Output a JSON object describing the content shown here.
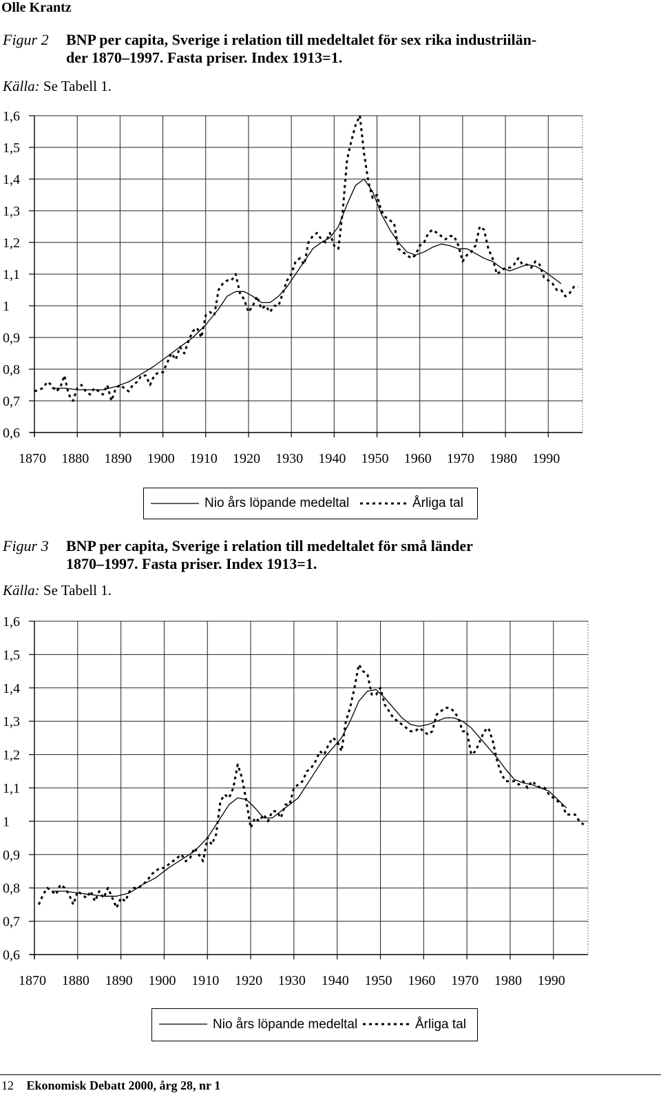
{
  "header": {
    "running_head": "Olle Krantz"
  },
  "figures": [
    {
      "label": "Figur 2",
      "title_line1": "BNP per capita, Sverige i relation till medeltalet för sex rika industriilän-",
      "title_line2": "der 1870–1997. Fasta priser. Index 1913=1.",
      "source_label": "Källa:",
      "source_text": "Se Tabell 1.",
      "legend": {
        "solid": "Nio års löpande medeltal",
        "dotted": "Årliga tal"
      }
    },
    {
      "label": "Figur 3",
      "title_line1": "BNP per capita, Sverige i relation till medeltalet för små länder",
      "title_line2": "1870–1997. Fasta priser. Index 1913=1.",
      "source_label": "Källa:",
      "source_text": "Se Tabell 1.",
      "legend": {
        "solid": "Nio års löpande medeltal",
        "dotted": "Årliga tal"
      }
    }
  ],
  "footer": {
    "page": "12",
    "journal": "Ekonomisk Debatt 2000, årg 28, nr 1"
  },
  "chart_data": [
    {
      "type": "line",
      "title": "BNP per capita, Sverige i relation till medeltalet för sex rika industriiländer 1870–1997. Fasta priser. Index 1913=1.",
      "xlim": [
        1870,
        1998
      ],
      "ylim": [
        0.6,
        1.6
      ],
      "x_ticks": [
        1870,
        1880,
        1890,
        1900,
        1910,
        1920,
        1930,
        1940,
        1950,
        1960,
        1970,
        1980,
        1990
      ],
      "y_ticks": [
        1.6,
        1.5,
        1.4,
        1.3,
        1.2,
        1.1,
        1.0,
        0.9,
        0.8,
        0.7,
        0.6
      ],
      "y_tick_labels": [
        "1,6",
        "1,5",
        "1,4",
        "1,3",
        "1,2",
        "1,1",
        "1",
        "0,9",
        "0,8",
        "0,7",
        "0,6"
      ],
      "grid": true,
      "series": [
        {
          "name": "Nio års löpande medeltal",
          "style": "solid",
          "x": [
            1874,
            1877,
            1880,
            1883,
            1886,
            1889,
            1892,
            1895,
            1898,
            1901,
            1904,
            1907,
            1910,
            1913,
            1915,
            1917,
            1919,
            1921,
            1923,
            1925,
            1927,
            1929,
            1931,
            1933,
            1935,
            1937,
            1939,
            1941,
            1943,
            1945,
            1946,
            1947,
            1949,
            1951,
            1953,
            1955,
            1957,
            1959,
            1961,
            1963,
            1965,
            1967,
            1969,
            1971,
            1973,
            1975,
            1977,
            1979,
            1981,
            1983,
            1985,
            1987,
            1989,
            1991,
            1993
          ],
          "y": [
            0.74,
            0.74,
            0.735,
            0.735,
            0.735,
            0.745,
            0.76,
            0.785,
            0.81,
            0.84,
            0.87,
            0.9,
            0.94,
            0.99,
            1.03,
            1.045,
            1.045,
            1.03,
            1.01,
            1.01,
            1.03,
            1.06,
            1.1,
            1.14,
            1.18,
            1.2,
            1.215,
            1.25,
            1.32,
            1.38,
            1.39,
            1.4,
            1.36,
            1.29,
            1.24,
            1.2,
            1.17,
            1.16,
            1.17,
            1.185,
            1.195,
            1.19,
            1.18,
            1.18,
            1.165,
            1.15,
            1.14,
            1.12,
            1.11,
            1.12,
            1.13,
            1.125,
            1.11,
            1.09,
            1.07
          ]
        },
        {
          "name": "Årliga tal",
          "style": "dotted",
          "x": [
            1870,
            1872,
            1873,
            1874,
            1875,
            1876,
            1877,
            1878,
            1879,
            1880,
            1881,
            1882,
            1883,
            1884,
            1885,
            1886,
            1887,
            1888,
            1889,
            1890,
            1891,
            1892,
            1893,
            1894,
            1895,
            1896,
            1897,
            1898,
            1899,
            1900,
            1901,
            1902,
            1903,
            1904,
            1905,
            1906,
            1907,
            1908,
            1909,
            1910,
            1911,
            1912,
            1913,
            1914,
            1915,
            1916,
            1917,
            1918,
            1919,
            1920,
            1921,
            1922,
            1923,
            1924,
            1925,
            1926,
            1927,
            1928,
            1929,
            1930,
            1931,
            1932,
            1933,
            1934,
            1935,
            1936,
            1937,
            1938,
            1939,
            1940,
            1941,
            1942,
            1943,
            1944,
            1945,
            1946,
            1947,
            1948,
            1949,
            1950,
            1951,
            1952,
            1953,
            1954,
            1955,
            1956,
            1957,
            1958,
            1959,
            1960,
            1961,
            1962,
            1963,
            1964,
            1965,
            1966,
            1967,
            1968,
            1969,
            1970,
            1971,
            1972,
            1973,
            1974,
            1975,
            1976,
            1977,
            1978,
            1979,
            1980,
            1981,
            1982,
            1983,
            1984,
            1985,
            1986,
            1987,
            1988,
            1989,
            1990,
            1991,
            1992,
            1993,
            1994,
            1995,
            1996,
            1997
          ],
          "y": [
            0.73,
            0.74,
            0.76,
            0.75,
            0.73,
            0.74,
            0.78,
            0.72,
            0.7,
            0.74,
            0.75,
            0.73,
            0.72,
            0.74,
            0.73,
            0.72,
            0.75,
            0.7,
            0.74,
            0.75,
            0.74,
            0.73,
            0.75,
            0.76,
            0.78,
            0.78,
            0.75,
            0.78,
            0.79,
            0.79,
            0.82,
            0.85,
            0.83,
            0.87,
            0.85,
            0.89,
            0.92,
            0.93,
            0.9,
            0.97,
            0.98,
            0.97,
            1.05,
            1.07,
            1.08,
            1.08,
            1.1,
            1.04,
            1.02,
            0.98,
            1.0,
            1.03,
            0.99,
            1.0,
            0.98,
            1.0,
            1.0,
            1.04,
            1.08,
            1.1,
            1.14,
            1.15,
            1.13,
            1.2,
            1.22,
            1.23,
            1.21,
            1.2,
            1.23,
            1.19,
            1.18,
            1.3,
            1.46,
            1.52,
            1.57,
            1.6,
            1.48,
            1.39,
            1.34,
            1.35,
            1.3,
            1.28,
            1.27,
            1.26,
            1.18,
            1.17,
            1.16,
            1.15,
            1.16,
            1.19,
            1.2,
            1.23,
            1.24,
            1.23,
            1.22,
            1.21,
            1.22,
            1.22,
            1.19,
            1.14,
            1.16,
            1.17,
            1.19,
            1.25,
            1.24,
            1.18,
            1.15,
            1.1,
            1.11,
            1.12,
            1.12,
            1.13,
            1.15,
            1.13,
            1.13,
            1.12,
            1.14,
            1.13,
            1.09,
            1.08,
            1.07,
            1.05,
            1.05,
            1.03,
            1.04,
            1.06,
            1.06
          ]
        }
      ]
    },
    {
      "type": "line",
      "title": "BNP per capita, Sverige i relation till medeltalet för små länder 1870–1997. Fasta priser. Index 1913=1.",
      "xlim": [
        1870,
        1998
      ],
      "ylim": [
        0.6,
        1.6
      ],
      "x_ticks": [
        1870,
        1880,
        1890,
        1900,
        1910,
        1920,
        1930,
        1940,
        1950,
        1960,
        1970,
        1980,
        1990
      ],
      "y_ticks": [
        1.6,
        1.5,
        1.4,
        1.3,
        1.2,
        1.1,
        1.0,
        0.9,
        0.8,
        0.7,
        0.6
      ],
      "y_tick_labels": [
        "1,6",
        "1,5",
        "1,4",
        "1,3",
        "1,2",
        "1,1",
        "1",
        "0,9",
        "0,8",
        "0,7",
        "0,6"
      ],
      "grid": true,
      "series": [
        {
          "name": "Nio års löpande medeltal",
          "style": "solid",
          "x": [
            1874,
            1877,
            1880,
            1883,
            1886,
            1889,
            1892,
            1895,
            1898,
            1901,
            1904,
            1907,
            1910,
            1913,
            1915,
            1917,
            1919,
            1921,
            1923,
            1925,
            1927,
            1929,
            1931,
            1933,
            1935,
            1937,
            1939,
            1941,
            1943,
            1945,
            1947,
            1949,
            1951,
            1953,
            1955,
            1957,
            1959,
            1961,
            1963,
            1965,
            1967,
            1969,
            1971,
            1973,
            1975,
            1977,
            1979,
            1981,
            1983,
            1985,
            1987,
            1989,
            1991,
            1993
          ],
          "y": [
            0.79,
            0.79,
            0.785,
            0.78,
            0.775,
            0.775,
            0.785,
            0.81,
            0.83,
            0.86,
            0.885,
            0.91,
            0.95,
            1.01,
            1.05,
            1.07,
            1.065,
            1.04,
            1.01,
            1.01,
            1.03,
            1.05,
            1.07,
            1.11,
            1.15,
            1.19,
            1.22,
            1.25,
            1.3,
            1.36,
            1.39,
            1.395,
            1.37,
            1.34,
            1.31,
            1.29,
            1.285,
            1.29,
            1.3,
            1.31,
            1.31,
            1.3,
            1.28,
            1.25,
            1.22,
            1.19,
            1.155,
            1.125,
            1.115,
            1.11,
            1.1,
            1.09,
            1.065,
            1.04
          ]
        },
        {
          "name": "Årliga tal",
          "style": "dotted",
          "x": [
            1871,
            1872,
            1873,
            1874,
            1875,
            1876,
            1877,
            1878,
            1879,
            1880,
            1881,
            1882,
            1883,
            1884,
            1885,
            1886,
            1887,
            1888,
            1889,
            1890,
            1891,
            1892,
            1893,
            1894,
            1895,
            1896,
            1897,
            1898,
            1899,
            1900,
            1901,
            1902,
            1903,
            1904,
            1905,
            1906,
            1907,
            1908,
            1909,
            1910,
            1911,
            1912,
            1913,
            1914,
            1915,
            1916,
            1917,
            1918,
            1919,
            1920,
            1921,
            1922,
            1923,
            1924,
            1925,
            1926,
            1927,
            1928,
            1929,
            1930,
            1931,
            1932,
            1933,
            1934,
            1935,
            1936,
            1937,
            1938,
            1939,
            1940,
            1941,
            1942,
            1943,
            1944,
            1945,
            1946,
            1947,
            1948,
            1949,
            1950,
            1951,
            1952,
            1953,
            1954,
            1955,
            1956,
            1957,
            1958,
            1959,
            1960,
            1961,
            1962,
            1963,
            1964,
            1965,
            1966,
            1967,
            1968,
            1969,
            1970,
            1971,
            1972,
            1973,
            1974,
            1975,
            1976,
            1977,
            1978,
            1979,
            1980,
            1981,
            1982,
            1983,
            1984,
            1985,
            1986,
            1987,
            1988,
            1989,
            1990,
            1991,
            1992,
            1993,
            1994,
            1995,
            1996,
            1997
          ],
          "y": [
            0.75,
            0.78,
            0.8,
            0.79,
            0.78,
            0.81,
            0.8,
            0.78,
            0.75,
            0.79,
            0.78,
            0.77,
            0.79,
            0.76,
            0.79,
            0.77,
            0.8,
            0.77,
            0.74,
            0.77,
            0.76,
            0.79,
            0.8,
            0.8,
            0.81,
            0.82,
            0.84,
            0.85,
            0.86,
            0.86,
            0.87,
            0.88,
            0.89,
            0.9,
            0.88,
            0.89,
            0.92,
            0.9,
            0.88,
            0.95,
            0.93,
            0.96,
            1.06,
            1.08,
            1.07,
            1.1,
            1.17,
            1.13,
            1.06,
            0.98,
            1.01,
            1.0,
            1.02,
            1.0,
            1.03,
            1.03,
            1.01,
            1.05,
            1.05,
            1.1,
            1.11,
            1.12,
            1.15,
            1.16,
            1.18,
            1.21,
            1.2,
            1.23,
            1.25,
            1.24,
            1.21,
            1.3,
            1.34,
            1.4,
            1.47,
            1.45,
            1.44,
            1.38,
            1.38,
            1.4,
            1.35,
            1.33,
            1.31,
            1.3,
            1.29,
            1.28,
            1.27,
            1.27,
            1.28,
            1.27,
            1.26,
            1.27,
            1.32,
            1.33,
            1.34,
            1.34,
            1.33,
            1.31,
            1.27,
            1.27,
            1.2,
            1.21,
            1.24,
            1.27,
            1.28,
            1.24,
            1.18,
            1.14,
            1.12,
            1.12,
            1.12,
            1.11,
            1.12,
            1.1,
            1.12,
            1.11,
            1.1,
            1.1,
            1.08,
            1.07,
            1.06,
            1.05,
            1.02,
            1.02,
            1.02,
            1.0,
            0.99
          ]
        }
      ]
    }
  ]
}
